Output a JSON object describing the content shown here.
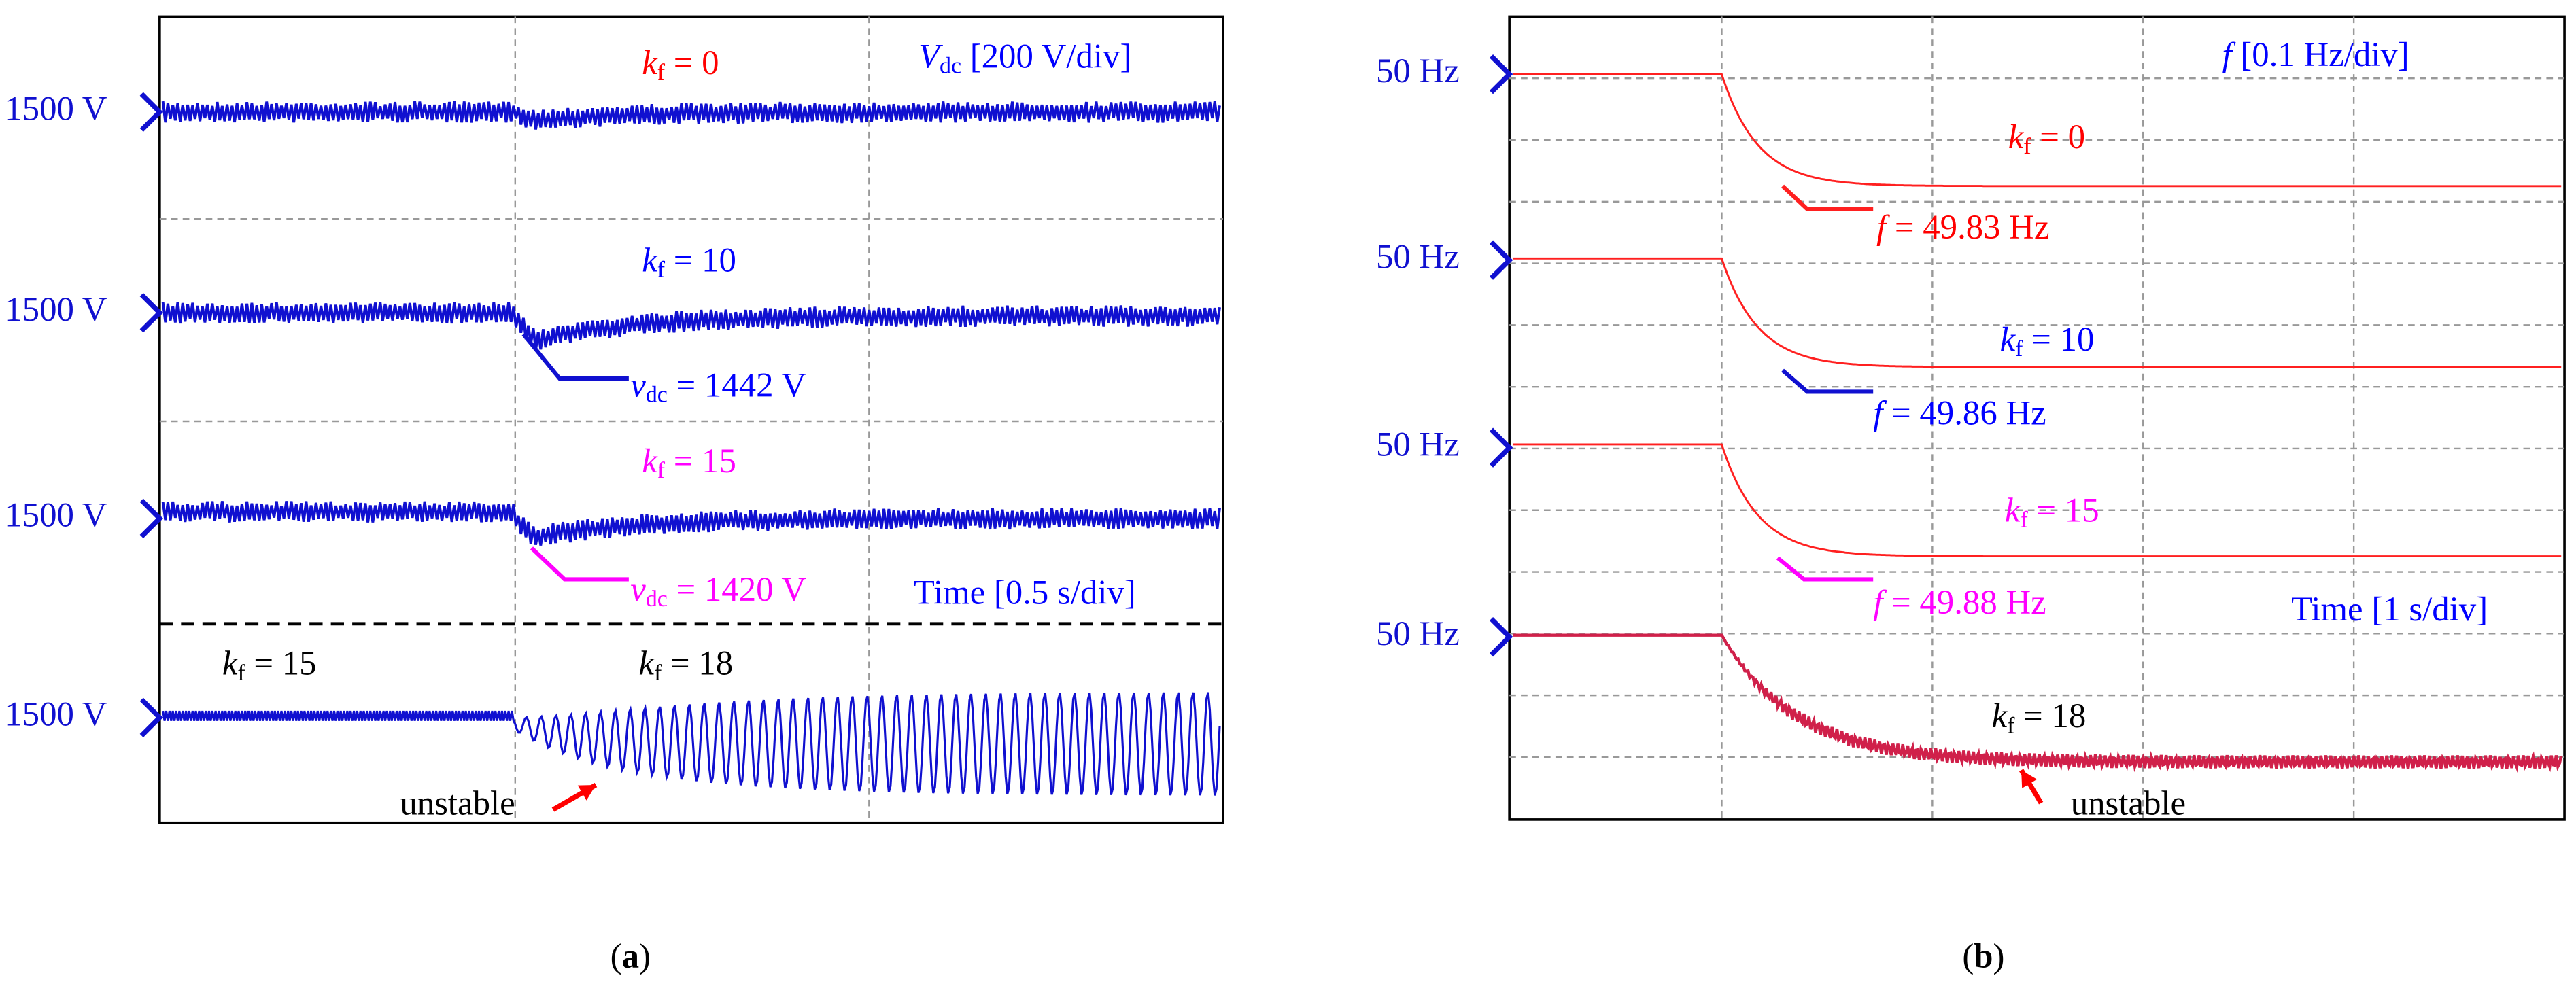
{
  "panels": [
    {
      "caption": {
        "open": "(",
        "letter": "a",
        "close": ")"
      },
      "y_labels": [
        "1500 V",
        "1500 V",
        "1500 V",
        "1500 V"
      ],
      "annotations": [
        {
          "sym": "k",
          "sub": "f",
          "text": " = 0",
          "color": "#ff0000"
        },
        {
          "sym": "V",
          "sub": "dc",
          "text": " [200 V/div]",
          "color": "#0000ff"
        },
        {
          "sym": "k",
          "sub": "f",
          "text": " = 10",
          "color": "#0000ff"
        },
        {
          "sym": "v",
          "sub": "dc",
          "text": " = 1442 V",
          "color": "#0000ff"
        },
        {
          "sym": "k",
          "sub": "f",
          "text": " = 15",
          "color": "#ff00ff"
        },
        {
          "sym": "v",
          "sub": "dc",
          "text": " = 1420 V",
          "color": "#ff00ff"
        },
        {
          "text": "Time [0.5 s/div]",
          "color": "#0000ff"
        },
        {
          "sym": "k",
          "sub": "f",
          "text": " = 15",
          "color": "#000000"
        },
        {
          "sym": "k",
          "sub": "f",
          "text": " = 18",
          "color": "#000000"
        },
        {
          "text": "unstable",
          "color": "#000000"
        }
      ]
    },
    {
      "caption": {
        "open": "(",
        "letter": "b",
        "close": ")"
      },
      "y_labels": [
        "50 Hz",
        "50 Hz",
        "50 Hz",
        "50 Hz"
      ],
      "annotations": [
        {
          "sym": "f",
          "text": " [0.1 Hz/div]",
          "color": "#0000ff"
        },
        {
          "sym": "k",
          "sub": "f",
          "text": " = 0",
          "color": "#ff0000"
        },
        {
          "sym": "f",
          "text": " = 49.83 Hz",
          "color": "#ff0000"
        },
        {
          "sym": "k",
          "sub": "f",
          "text": " = 10",
          "color": "#0000ff"
        },
        {
          "sym": "f",
          "text": " = 49.86 Hz",
          "color": "#0000ff"
        },
        {
          "sym": "k",
          "sub": "f",
          "text": " = 15",
          "color": "#ff00ff"
        },
        {
          "sym": "f",
          "text": " = 49.88 Hz",
          "color": "#ff00ff"
        },
        {
          "text": "Time [1 s/div]",
          "color": "#0000ff"
        },
        {
          "sym": "k",
          "sub": "f",
          "text": " = 18",
          "color": "#000000"
        },
        {
          "text": "unstable",
          "color": "#000000"
        }
      ]
    }
  ]
}
